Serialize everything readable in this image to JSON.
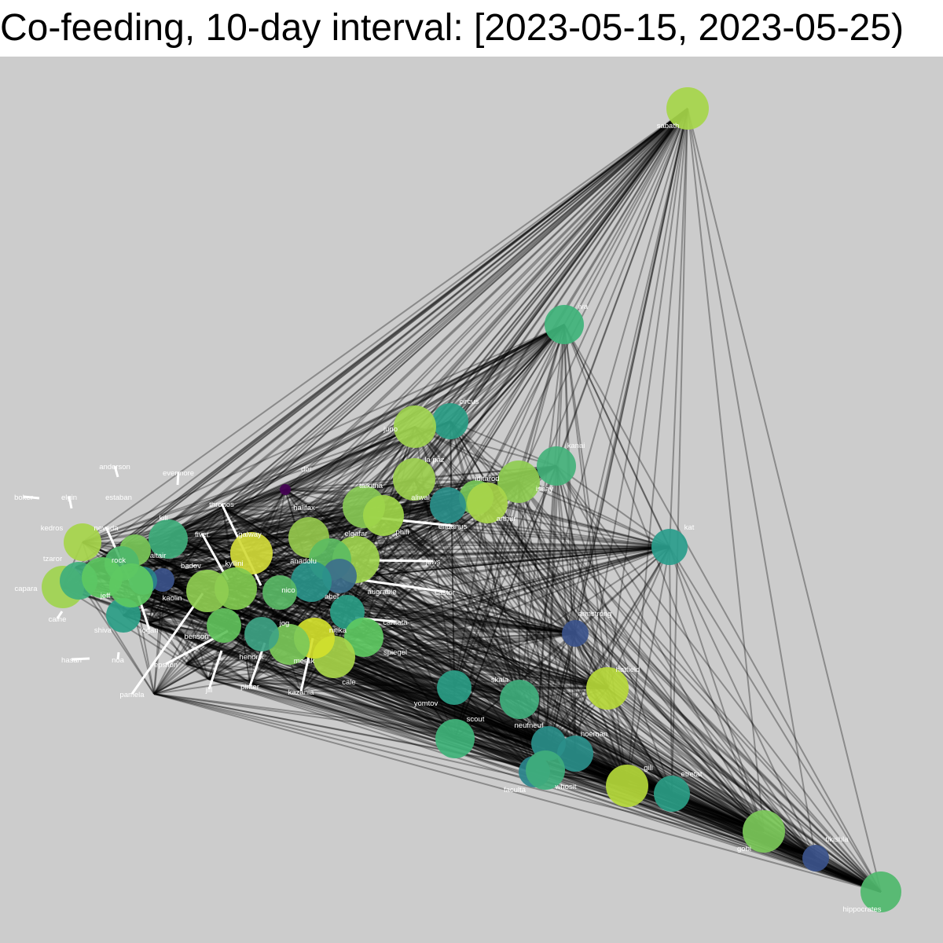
{
  "title": "Co-feeding, 10-day interval: [2023-05-15, 2023-05-25)",
  "palette": [
    "#440154",
    "#3b528b",
    "#21918c",
    "#2a9d86",
    "#3dae7c",
    "#5ec962",
    "#7fcd4f",
    "#a0d64a",
    "#c2df23",
    "#d9e021"
  ],
  "nodes": [
    {
      "id": "sabath",
      "color": "#a6d64a"
    },
    {
      "id": "iva",
      "color": "#3fb37a"
    },
    {
      "id": "circus",
      "color": "#2a9d86"
    },
    {
      "id": "juno",
      "color": "#9fd44f"
    },
    {
      "id": "kanai",
      "color": "#44b27b"
    },
    {
      "id": "la paz",
      "color": "#9ccf4e"
    },
    {
      "id": "dor",
      "color": "#440154"
    },
    {
      "id": "iditarod",
      "color": "#78c85a"
    },
    {
      "id": "ishay",
      "color": "#8fcd51"
    },
    {
      "id": "aliwal",
      "color": "#2a8f8a"
    },
    {
      "id": "arthur",
      "color": "#a8d54a"
    },
    {
      "id": "talkitna",
      "color": "#88c955"
    },
    {
      "id": "halifax",
      "color": "#95c84c"
    },
    {
      "id": "phili",
      "color": "#a0d64a"
    },
    {
      "id": "eridanus",
      "color": "#7cc95a"
    },
    {
      "id": "elgafar",
      "color": "#9fd44f"
    },
    {
      "id": "jaws",
      "color": "#66c35c"
    },
    {
      "id": "anadolu",
      "color": "#5cbc62"
    },
    {
      "id": "augrabie",
      "color": "#3d6f8c"
    },
    {
      "id": "castor",
      "color": "#7cc95a"
    },
    {
      "id": "kat",
      "color": "#2a9d8c"
    },
    {
      "id": "armstrong",
      "color": "#3b528b"
    },
    {
      "id": "hatfield",
      "color": "#b6d83a"
    },
    {
      "id": "abel",
      "color": "#2a948a"
    },
    {
      "id": "nico",
      "color": "#5ab866"
    },
    {
      "id": "cantata",
      "color": "#2a9d86"
    },
    {
      "id": "spiegel",
      "color": "#5ec962"
    },
    {
      "id": "cale",
      "color": "#a8d54a"
    },
    {
      "id": "nitika",
      "color": "#d3df2c"
    },
    {
      "id": "merak",
      "color": "#7cc95a"
    },
    {
      "id": "kazania",
      "color": "#9fd44f"
    },
    {
      "id": "jog",
      "color": "#3fa486"
    },
    {
      "id": "galway",
      "color": "#d2db3a"
    },
    {
      "id": "kyllini",
      "color": "#82cb50"
    },
    {
      "id": "thronos",
      "color": "#7fcd4f"
    },
    {
      "id": "fiver",
      "color": "#5ec962"
    },
    {
      "id": "hendrix",
      "color": "#2a9d86"
    },
    {
      "id": "pinter",
      "color": "#3fb37a"
    },
    {
      "id": "benson",
      "color": "#62c25c"
    },
    {
      "id": "jill",
      "color": "#2a9d86"
    },
    {
      "id": "epsilon",
      "color": "#7cc95a"
    },
    {
      "id": "pamela",
      "color": "#a6d54a"
    },
    {
      "id": "badov",
      "color": "#8fcd51"
    },
    {
      "id": "kaolin",
      "color": "#3b528b"
    },
    {
      "id": "kili",
      "color": "#3fae7c"
    },
    {
      "id": "evermore",
      "color": "#6cc35a"
    },
    {
      "id": "altair",
      "color": "#2a848c"
    },
    {
      "id": "anderson",
      "color": "#5ec962"
    },
    {
      "id": "estaban",
      "color": "#7cc95a"
    },
    {
      "id": "rock",
      "color": "#4fb96c"
    },
    {
      "id": "nevada",
      "color": "#6cc35a"
    },
    {
      "id": "boker",
      "color": "#5ec962"
    },
    {
      "id": "elgin",
      "color": "#7cc95a"
    },
    {
      "id": "kedros",
      "color": "#a6d54a"
    },
    {
      "id": "tzaror",
      "color": "#4fb96c"
    },
    {
      "id": "capara",
      "color": "#9fd44f"
    },
    {
      "id": "caine",
      "color": "#3fae7c"
    },
    {
      "id": "jeff",
      "color": "#5ec962"
    },
    {
      "id": "hasan",
      "color": "#3fae7c"
    },
    {
      "id": "shiva",
      "color": "#2a9d86"
    },
    {
      "id": "noa",
      "color": "#5ec962"
    },
    {
      "id": "logan",
      "color": "#b4d83a"
    },
    {
      "id": "yomtov",
      "color": "#2a9d86"
    },
    {
      "id": "skala",
      "color": "#3fae7c"
    },
    {
      "id": "scout",
      "color": "#3fb37a"
    },
    {
      "id": "neufneuf",
      "color": "#2a8f8a"
    },
    {
      "id": "hoeman",
      "color": "#2a8f8a"
    },
    {
      "id": "faculta",
      "color": "#2a848c"
    },
    {
      "id": "whosit",
      "color": "#3fae7c"
    },
    {
      "id": "gili",
      "color": "#b4d83a"
    },
    {
      "id": "etretat",
      "color": "#2a9d86"
    },
    {
      "id": "gobi",
      "color": "#7cc95a"
    },
    {
      "id": "tikishla",
      "color": "#3b528b"
    },
    {
      "id": "hippocrates",
      "color": "#4fb96c"
    }
  ]
}
